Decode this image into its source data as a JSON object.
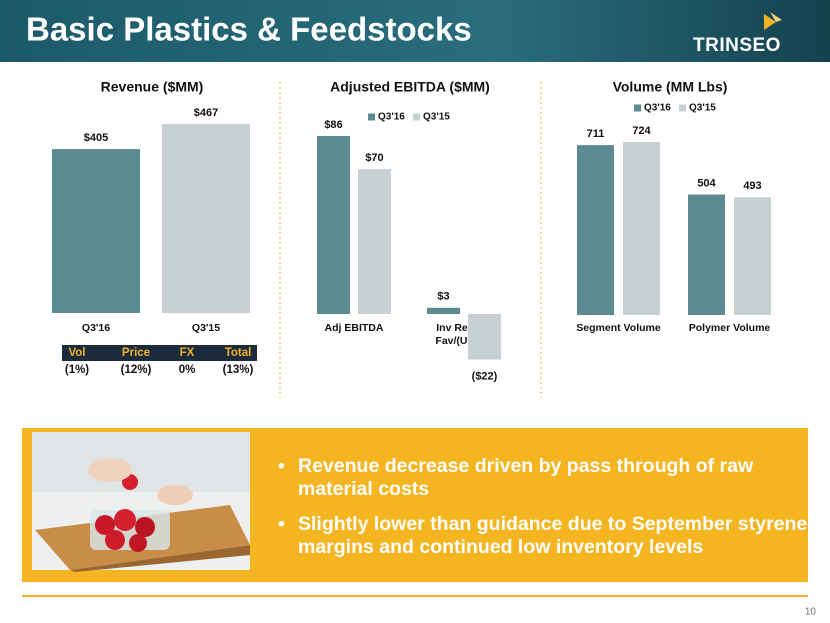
{
  "header": {
    "title": "Basic Plastics & Feedstocks",
    "logo": "TRINSEO"
  },
  "chart_data": [
    {
      "type": "bar",
      "title": "Revenue ($MM)",
      "categories": [
        "Q3'16",
        "Q3'15"
      ],
      "values": [
        405,
        467
      ],
      "value_labels": [
        "$405",
        "$467"
      ],
      "colors": [
        "#5b8b91",
        "#c7d0d2"
      ]
    },
    {
      "type": "grouped-bar",
      "title": "Adjusted EBITDA ($MM)",
      "categories": [
        "Adj EBITDA",
        "Inv Reval - Fav/(Unfav)"
      ],
      "series": [
        {
          "name": "Q3'16",
          "color": "#5b8b91",
          "values": [
            86,
            3
          ],
          "value_labels": [
            "$86",
            "$3"
          ]
        },
        {
          "name": "Q3'15",
          "color": "#c7d0d2",
          "values": [
            70,
            -22
          ],
          "value_labels": [
            "$70",
            "($22)"
          ]
        }
      ]
    },
    {
      "type": "grouped-bar",
      "title": "Volume (MM Lbs)",
      "categories": [
        "Segment Volume",
        "Polymer Volume"
      ],
      "series": [
        {
          "name": "Q3'16",
          "color": "#5b8b91",
          "values": [
            711,
            504
          ]
        },
        {
          "name": "Q3'15",
          "color": "#c7d0d2",
          "values": [
            724,
            493
          ]
        }
      ]
    }
  ],
  "table": {
    "header": [
      "Vol",
      "Price",
      "FX",
      "Total"
    ],
    "rows": [
      [
        "(1%)",
        "(12%)",
        "0%",
        "(13%)"
      ]
    ]
  },
  "bullets": [
    "Revenue decrease driven by pass through of raw material costs",
    "Slightly lower than guidance due to September styrene margins and continued low inventory levels"
  ],
  "page_number": "10"
}
